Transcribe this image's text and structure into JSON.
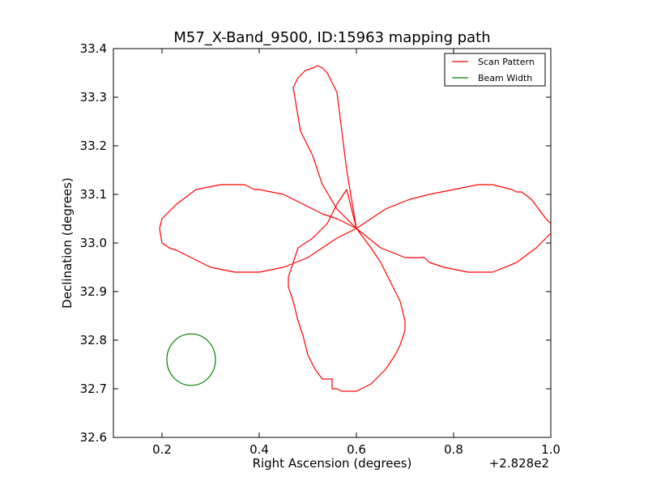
{
  "chart_data": {
    "type": "line",
    "title": "M57_X-Band_9500, ID:15963 mapping path",
    "xlabel": "Right Ascension (degrees)",
    "ylabel": "Declination (degrees)",
    "x_offset_label": "+2.828e2",
    "xlim": [
      0.1,
      1.0
    ],
    "ylim": [
      32.6,
      33.4
    ],
    "xticks": [
      0.2,
      0.4,
      0.6,
      0.8,
      1.0
    ],
    "xtick_labels": [
      "0.2",
      "0.4",
      "0.6",
      "0.8",
      "1.0"
    ],
    "yticks": [
      32.6,
      32.7,
      32.8,
      32.9,
      33.0,
      33.1,
      33.2,
      33.3,
      33.4
    ],
    "ytick_labels": [
      "32.6",
      "32.7",
      "32.8",
      "32.9",
      "33.0",
      "33.1",
      "33.2",
      "33.3",
      "33.4"
    ],
    "grid": false,
    "legend_position": "top-right",
    "series": [
      {
        "name": "Scan Pattern",
        "color": "#ff0000",
        "x": [
          0.6,
          0.66,
          0.71,
          0.75,
          0.8,
          0.85,
          0.88,
          0.92,
          0.93,
          0.94,
          0.96,
          0.975,
          0.99,
          1.0,
          1.0,
          0.97,
          0.93,
          0.88,
          0.83,
          0.78,
          0.75,
          0.74,
          0.7,
          0.65,
          0.6,
          0.63,
          0.65,
          0.67,
          0.69,
          0.7,
          0.7,
          0.69,
          0.68,
          0.66,
          0.63,
          0.6,
          0.58,
          0.57,
          0.56,
          0.55,
          0.55,
          0.54,
          0.53,
          0.515,
          0.5,
          0.49,
          0.48,
          0.47,
          0.46,
          0.46,
          0.47,
          0.48,
          0.51,
          0.54,
          0.56,
          0.58,
          0.6,
          0.56,
          0.53,
          0.5,
          0.45,
          0.4,
          0.35,
          0.3,
          0.26,
          0.23,
          0.215,
          0.2,
          0.195,
          0.2,
          0.23,
          0.27,
          0.32,
          0.37,
          0.39,
          0.4,
          0.45,
          0.49,
          0.53,
          0.56,
          0.58,
          0.6,
          0.56,
          0.53,
          0.51,
          0.49,
          0.485,
          0.48,
          0.475,
          0.47,
          0.48,
          0.495,
          0.51,
          0.52,
          0.53,
          0.54,
          0.56,
          0.58,
          0.6
        ],
        "y": [
          33.03,
          33.07,
          33.09,
          33.1,
          33.11,
          33.12,
          33.12,
          33.11,
          33.105,
          33.105,
          33.09,
          33.07,
          33.05,
          33.04,
          33.02,
          32.99,
          32.96,
          32.94,
          32.94,
          32.95,
          32.96,
          32.97,
          32.97,
          32.99,
          33.03,
          32.99,
          32.96,
          32.92,
          32.88,
          32.84,
          32.82,
          32.79,
          32.77,
          32.74,
          32.71,
          32.695,
          32.695,
          32.695,
          32.7,
          32.7,
          32.72,
          32.72,
          32.72,
          32.74,
          32.77,
          32.81,
          32.84,
          32.88,
          32.91,
          32.93,
          32.96,
          32.99,
          33.01,
          33.04,
          33.08,
          33.11,
          33.03,
          33.01,
          32.99,
          32.97,
          32.95,
          32.94,
          32.94,
          32.95,
          32.97,
          32.985,
          32.99,
          33.0,
          33.03,
          33.05,
          33.08,
          33.11,
          33.12,
          33.12,
          33.11,
          33.11,
          33.1,
          33.08,
          33.06,
          33.05,
          33.04,
          33.03,
          33.07,
          33.12,
          33.18,
          33.22,
          33.23,
          33.26,
          33.29,
          33.32,
          33.34,
          33.355,
          33.36,
          33.365,
          33.36,
          33.35,
          33.31,
          33.15,
          33.03
        ]
      },
      {
        "name": "Beam Width",
        "color": "#008000",
        "shape": "circle",
        "center": [
          0.26,
          32.76
        ],
        "radius_x": 0.05,
        "radius_y": 0.053
      }
    ]
  }
}
